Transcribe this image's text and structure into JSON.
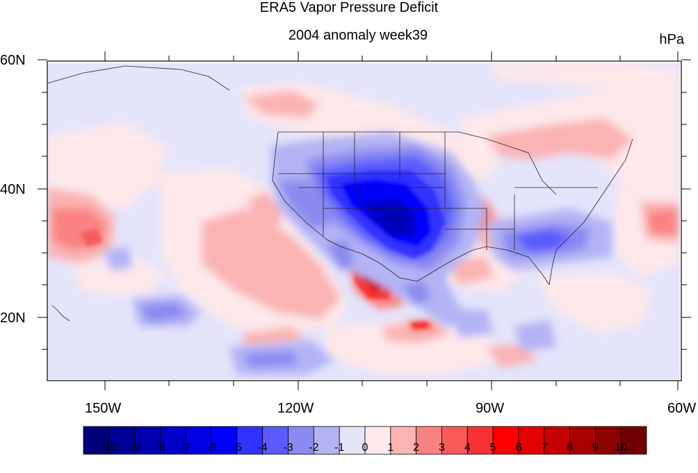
{
  "title": "ERA5 Vapor Pressure Deficit",
  "subtitle": "2004 anomaly week39",
  "units": "hPa",
  "lat_labels": [
    "60N",
    "40N",
    "20N"
  ],
  "lon_labels": [
    "150W",
    "120W",
    "90W",
    "60W"
  ],
  "colorbar": {
    "labels": [
      "-10",
      "-9",
      "-8",
      "-7",
      "-6",
      "-5",
      "-4",
      "-3",
      "-2",
      "-1",
      "0",
      "1",
      "2",
      "3",
      "4",
      "5",
      "6",
      "7",
      "8",
      "9",
      "10"
    ],
    "colors": [
      "#00007a",
      "#000096",
      "#0000b0",
      "#0000c8",
      "#0000e0",
      "#0000ff",
      "#3232ff",
      "#5a5aff",
      "#8a8af0",
      "#b4b4f5",
      "#e4e4fb",
      "#fde8ea",
      "#fbb3b3",
      "#fa8282",
      "#f85a5a",
      "#f63232",
      "#ff0000",
      "#e20000",
      "#c40000",
      "#a80000",
      "#8c0000",
      "#700000"
    ]
  },
  "chart_data": {
    "type": "heatmap",
    "title": "ERA5 Vapor Pressure Deficit",
    "subtitle": "2004 anomaly week39",
    "units": "hPa",
    "lat_range": [
      10,
      60
    ],
    "lon_range": [
      -160,
      -60
    ],
    "lat_ticks": [
      "60N",
      "40N",
      "20N"
    ],
    "lon_ticks": [
      "150W",
      "120W",
      "90W",
      "60W"
    ],
    "value_range": [
      -10,
      10
    ]
  }
}
